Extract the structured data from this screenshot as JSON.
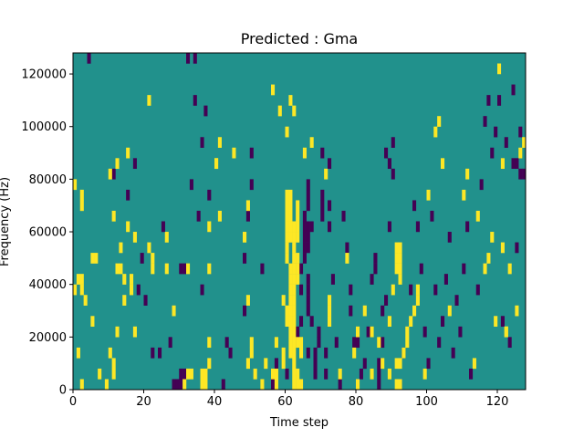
{
  "chart_data": {
    "type": "heatmap",
    "title": "Predicted : Gma",
    "xlabel": "Time step",
    "ylabel": "Frequency (Hz)",
    "xlim": [
      0,
      128
    ],
    "ylim": [
      0,
      128000
    ],
    "x_ticks": [
      0,
      20,
      40,
      60,
      80,
      100,
      120
    ],
    "y_ticks": [
      0,
      20000,
      40000,
      60000,
      80000,
      100000,
      120000
    ],
    "x_tick_labels": [
      "0",
      "20",
      "40",
      "60",
      "80",
      "100",
      "120"
    ],
    "y_tick_labels": [
      "0",
      "20000",
      "40000",
      "60000",
      "80000",
      "100000",
      "120000"
    ],
    "grid": false,
    "colormap": "viridis",
    "colors": {
      "background": "#21918c",
      "low": "#440154",
      "high": "#fde725"
    },
    "cell_size": {
      "time_steps": 1,
      "frequency_hz": 4000
    },
    "cells": {
      "high": [
        [
          0,
          76000
        ],
        [
          2,
          68000
        ],
        [
          2,
          72000
        ],
        [
          0,
          36000
        ],
        [
          1,
          40000
        ],
        [
          2,
          40000
        ],
        [
          2,
          36000
        ],
        [
          3,
          32000
        ],
        [
          1,
          12000
        ],
        [
          2,
          0
        ],
        [
          5,
          48000
        ],
        [
          5,
          24000
        ],
        [
          6,
          48000
        ],
        [
          7,
          4000
        ],
        [
          9,
          0
        ],
        [
          10,
          80000
        ],
        [
          10,
          12000
        ],
        [
          11,
          64000
        ],
        [
          11,
          8000
        ],
        [
          11,
          4000
        ],
        [
          12,
          84000
        ],
        [
          12,
          44000
        ],
        [
          12,
          20000
        ],
        [
          13,
          52000
        ],
        [
          13,
          44000
        ],
        [
          14,
          40000
        ],
        [
          14,
          32000
        ],
        [
          15,
          88000
        ],
        [
          15,
          60000
        ],
        [
          16,
          40000
        ],
        [
          16,
          36000
        ],
        [
          17,
          56000
        ],
        [
          17,
          20000
        ],
        [
          21,
          108000
        ],
        [
          21,
          52000
        ],
        [
          22,
          48000
        ],
        [
          22,
          44000
        ],
        [
          26,
          56000
        ],
        [
          26,
          44000
        ],
        [
          28,
          28000
        ],
        [
          31,
          0
        ],
        [
          32,
          4000
        ],
        [
          32,
          44000
        ],
        [
          33,
          4000
        ],
        [
          36,
          0
        ],
        [
          36,
          4000
        ],
        [
          37,
          0
        ],
        [
          37,
          4000
        ],
        [
          38,
          60000
        ],
        [
          38,
          44000
        ],
        [
          38,
          16000
        ],
        [
          38,
          8000
        ],
        [
          40,
          84000
        ],
        [
          40,
          84000
        ],
        [
          41,
          92000
        ],
        [
          41,
          64000
        ],
        [
          45,
          88000
        ],
        [
          48,
          56000
        ],
        [
          49,
          68000
        ],
        [
          49,
          32000
        ],
        [
          49,
          8000
        ],
        [
          50,
          12000
        ],
        [
          50,
          16000
        ],
        [
          51,
          4000
        ],
        [
          53,
          0
        ],
        [
          54,
          8000
        ],
        [
          56,
          4000
        ],
        [
          57,
          0
        ],
        [
          57,
          4000
        ],
        [
          57,
          16000
        ],
        [
          59,
          8000
        ],
        [
          59,
          12000
        ],
        [
          59,
          32000
        ],
        [
          60,
          24000
        ],
        [
          60,
          28000
        ],
        [
          60,
          48000
        ],
        [
          60,
          52000
        ],
        [
          60,
          56000
        ],
        [
          60,
          60000
        ],
        [
          60,
          64000
        ],
        [
          60,
          68000
        ],
        [
          60,
          72000
        ],
        [
          61,
          12000
        ],
        [
          61,
          16000
        ],
        [
          61,
          20000
        ],
        [
          61,
          24000
        ],
        [
          61,
          28000
        ],
        [
          61,
          32000
        ],
        [
          61,
          36000
        ],
        [
          61,
          40000
        ],
        [
          61,
          44000
        ],
        [
          61,
          56000
        ],
        [
          61,
          60000
        ],
        [
          61,
          64000
        ],
        [
          61,
          68000
        ],
        [
          61,
          72000
        ],
        [
          62,
          0
        ],
        [
          62,
          4000
        ],
        [
          62,
          8000
        ],
        [
          62,
          12000
        ],
        [
          62,
          16000
        ],
        [
          62,
          20000
        ],
        [
          62,
          24000
        ],
        [
          62,
          28000
        ],
        [
          62,
          32000
        ],
        [
          62,
          36000
        ],
        [
          62,
          40000
        ],
        [
          62,
          44000
        ],
        [
          62,
          48000
        ],
        [
          62,
          52000
        ],
        [
          62,
          56000
        ],
        [
          62,
          60000
        ],
        [
          63,
          0
        ],
        [
          63,
          4000
        ],
        [
          63,
          16000
        ],
        [
          63,
          40000
        ],
        [
          63,
          44000
        ],
        [
          63,
          48000
        ],
        [
          63,
          56000
        ],
        [
          63,
          60000
        ],
        [
          63,
          64000
        ],
        [
          63,
          68000
        ],
        [
          64,
          0
        ],
        [
          64,
          12000
        ],
        [
          64,
          16000
        ],
        [
          56,
          112000
        ],
        [
          58,
          104000
        ],
        [
          60,
          96000
        ],
        [
          61,
          108000
        ],
        [
          62,
          104000
        ],
        [
          65,
          88000
        ],
        [
          67,
          92000
        ],
        [
          71,
          80000
        ],
        [
          72,
          32000
        ],
        [
          72,
          28000
        ],
        [
          72,
          24000
        ],
        [
          75,
          4000
        ],
        [
          77,
          48000
        ],
        [
          79,
          12000
        ],
        [
          80,
          0
        ],
        [
          80,
          20000
        ],
        [
          82,
          28000
        ],
        [
          84,
          20000
        ],
        [
          84,
          4000
        ],
        [
          86,
          16000
        ],
        [
          87,
          8000
        ],
        [
          89,
          4000
        ],
        [
          89,
          24000
        ],
        [
          90,
          36000
        ],
        [
          91,
          52000
        ],
        [
          91,
          48000
        ],
        [
          91,
          44000
        ],
        [
          92,
          52000
        ],
        [
          92,
          48000
        ],
        [
          92,
          44000
        ],
        [
          92,
          40000
        ],
        [
          91,
          0
        ],
        [
          91,
          8000
        ],
        [
          92,
          0
        ],
        [
          92,
          8000
        ],
        [
          93,
          12000
        ],
        [
          94,
          16000
        ],
        [
          94,
          20000
        ],
        [
          95,
          24000
        ],
        [
          96,
          28000
        ],
        [
          97,
          32000
        ],
        [
          97,
          36000
        ],
        [
          99,
          4000
        ],
        [
          100,
          72000
        ],
        [
          102,
          96000
        ],
        [
          103,
          100000
        ],
        [
          104,
          84000
        ],
        [
          106,
          28000
        ],
        [
          110,
          72000
        ],
        [
          111,
          80000
        ],
        [
          113,
          8000
        ],
        [
          114,
          64000
        ],
        [
          116,
          44000
        ],
        [
          117,
          48000
        ],
        [
          118,
          56000
        ],
        [
          119,
          24000
        ],
        [
          120,
          120000
        ],
        [
          121,
          84000
        ],
        [
          121,
          52000
        ],
        [
          122,
          20000
        ],
        [
          122,
          20000
        ],
        [
          123,
          44000
        ],
        [
          125,
          28000
        ],
        [
          126,
          88000
        ],
        [
          127,
          92000
        ]
      ],
      "low": [
        [
          4,
          124000
        ],
        [
          11,
          80000
        ],
        [
          15,
          72000
        ],
        [
          17,
          84000
        ],
        [
          18,
          36000
        ],
        [
          19,
          48000
        ],
        [
          20,
          32000
        ],
        [
          22,
          12000
        ],
        [
          24,
          12000
        ],
        [
          25,
          60000
        ],
        [
          27,
          16000
        ],
        [
          28,
          0
        ],
        [
          29,
          0
        ],
        [
          30,
          0
        ],
        [
          30,
          4000
        ],
        [
          31,
          4000
        ],
        [
          30,
          44000
        ],
        [
          31,
          44000
        ],
        [
          32,
          124000
        ],
        [
          33,
          76000
        ],
        [
          34,
          124000
        ],
        [
          34,
          108000
        ],
        [
          35,
          64000
        ],
        [
          36,
          92000
        ],
        [
          36,
          36000
        ],
        [
          37,
          104000
        ],
        [
          38,
          72000
        ],
        [
          42,
          0
        ],
        [
          43,
          16000
        ],
        [
          44,
          12000
        ],
        [
          48,
          28000
        ],
        [
          48,
          48000
        ],
        [
          49,
          64000
        ],
        [
          50,
          88000
        ],
        [
          50,
          76000
        ],
        [
          53,
          44000
        ],
        [
          56,
          0
        ],
        [
          57,
          8000
        ],
        [
          60,
          4000
        ],
        [
          62,
          16000
        ],
        [
          63,
          20000
        ],
        [
          64,
          24000
        ],
        [
          64,
          36000
        ],
        [
          64,
          44000
        ],
        [
          65,
          48000
        ],
        [
          65,
          52000
        ],
        [
          65,
          56000
        ],
        [
          65,
          60000
        ],
        [
          65,
          64000
        ],
        [
          66,
          68000
        ],
        [
          66,
          72000
        ],
        [
          66,
          76000
        ],
        [
          66,
          52000
        ],
        [
          66,
          56000
        ],
        [
          66,
          60000
        ],
        [
          67,
          60000
        ],
        [
          66,
          40000
        ],
        [
          66,
          36000
        ],
        [
          66,
          32000
        ],
        [
          66,
          28000
        ],
        [
          66,
          12000
        ],
        [
          67,
          24000
        ],
        [
          68,
          4000
        ],
        [
          68,
          8000
        ],
        [
          68,
          12000
        ],
        [
          69,
          16000
        ],
        [
          69,
          20000
        ],
        [
          70,
          88000
        ],
        [
          70,
          72000
        ],
        [
          70,
          68000
        ],
        [
          70,
          64000
        ],
        [
          71,
          12000
        ],
        [
          71,
          4000
        ],
        [
          72,
          84000
        ],
        [
          72,
          60000
        ],
        [
          72,
          68000
        ],
        [
          73,
          40000
        ],
        [
          74,
          16000
        ],
        [
          75,
          0
        ],
        [
          76,
          64000
        ],
        [
          77,
          52000
        ],
        [
          78,
          36000
        ],
        [
          78,
          28000
        ],
        [
          79,
          16000
        ],
        [
          80,
          16000
        ],
        [
          81,
          4000
        ],
        [
          82,
          8000
        ],
        [
          83,
          20000
        ],
        [
          84,
          40000
        ],
        [
          85,
          48000
        ],
        [
          85,
          44000
        ],
        [
          86,
          0
        ],
        [
          86,
          4000
        ],
        [
          86,
          8000
        ],
        [
          87,
          16000
        ],
        [
          87,
          28000
        ],
        [
          88,
          32000
        ],
        [
          88,
          88000
        ],
        [
          89,
          84000
        ],
        [
          89,
          60000
        ],
        [
          90,
          80000
        ],
        [
          90,
          92000
        ],
        [
          92,
          0
        ],
        [
          93,
          12000
        ],
        [
          95,
          36000
        ],
        [
          96,
          68000
        ],
        [
          97,
          60000
        ],
        [
          98,
          44000
        ],
        [
          99,
          20000
        ],
        [
          100,
          8000
        ],
        [
          101,
          64000
        ],
        [
          102,
          36000
        ],
        [
          103,
          16000
        ],
        [
          104,
          24000
        ],
        [
          105,
          40000
        ],
        [
          106,
          56000
        ],
        [
          107,
          12000
        ],
        [
          108,
          32000
        ],
        [
          109,
          20000
        ],
        [
          110,
          44000
        ],
        [
          111,
          60000
        ],
        [
          112,
          4000
        ],
        [
          114,
          36000
        ],
        [
          115,
          76000
        ],
        [
          116,
          100000
        ],
        [
          117,
          108000
        ],
        [
          118,
          88000
        ],
        [
          119,
          96000
        ],
        [
          120,
          108000
        ],
        [
          121,
          24000
        ],
        [
          122,
          92000
        ],
        [
          123,
          16000
        ],
        [
          124,
          112000
        ],
        [
          125,
          52000
        ],
        [
          126,
          96000
        ],
        [
          127,
          80000
        ],
        [
          126,
          80000
        ],
        [
          125,
          84000
        ],
        [
          124,
          84000
        ]
      ]
    }
  }
}
